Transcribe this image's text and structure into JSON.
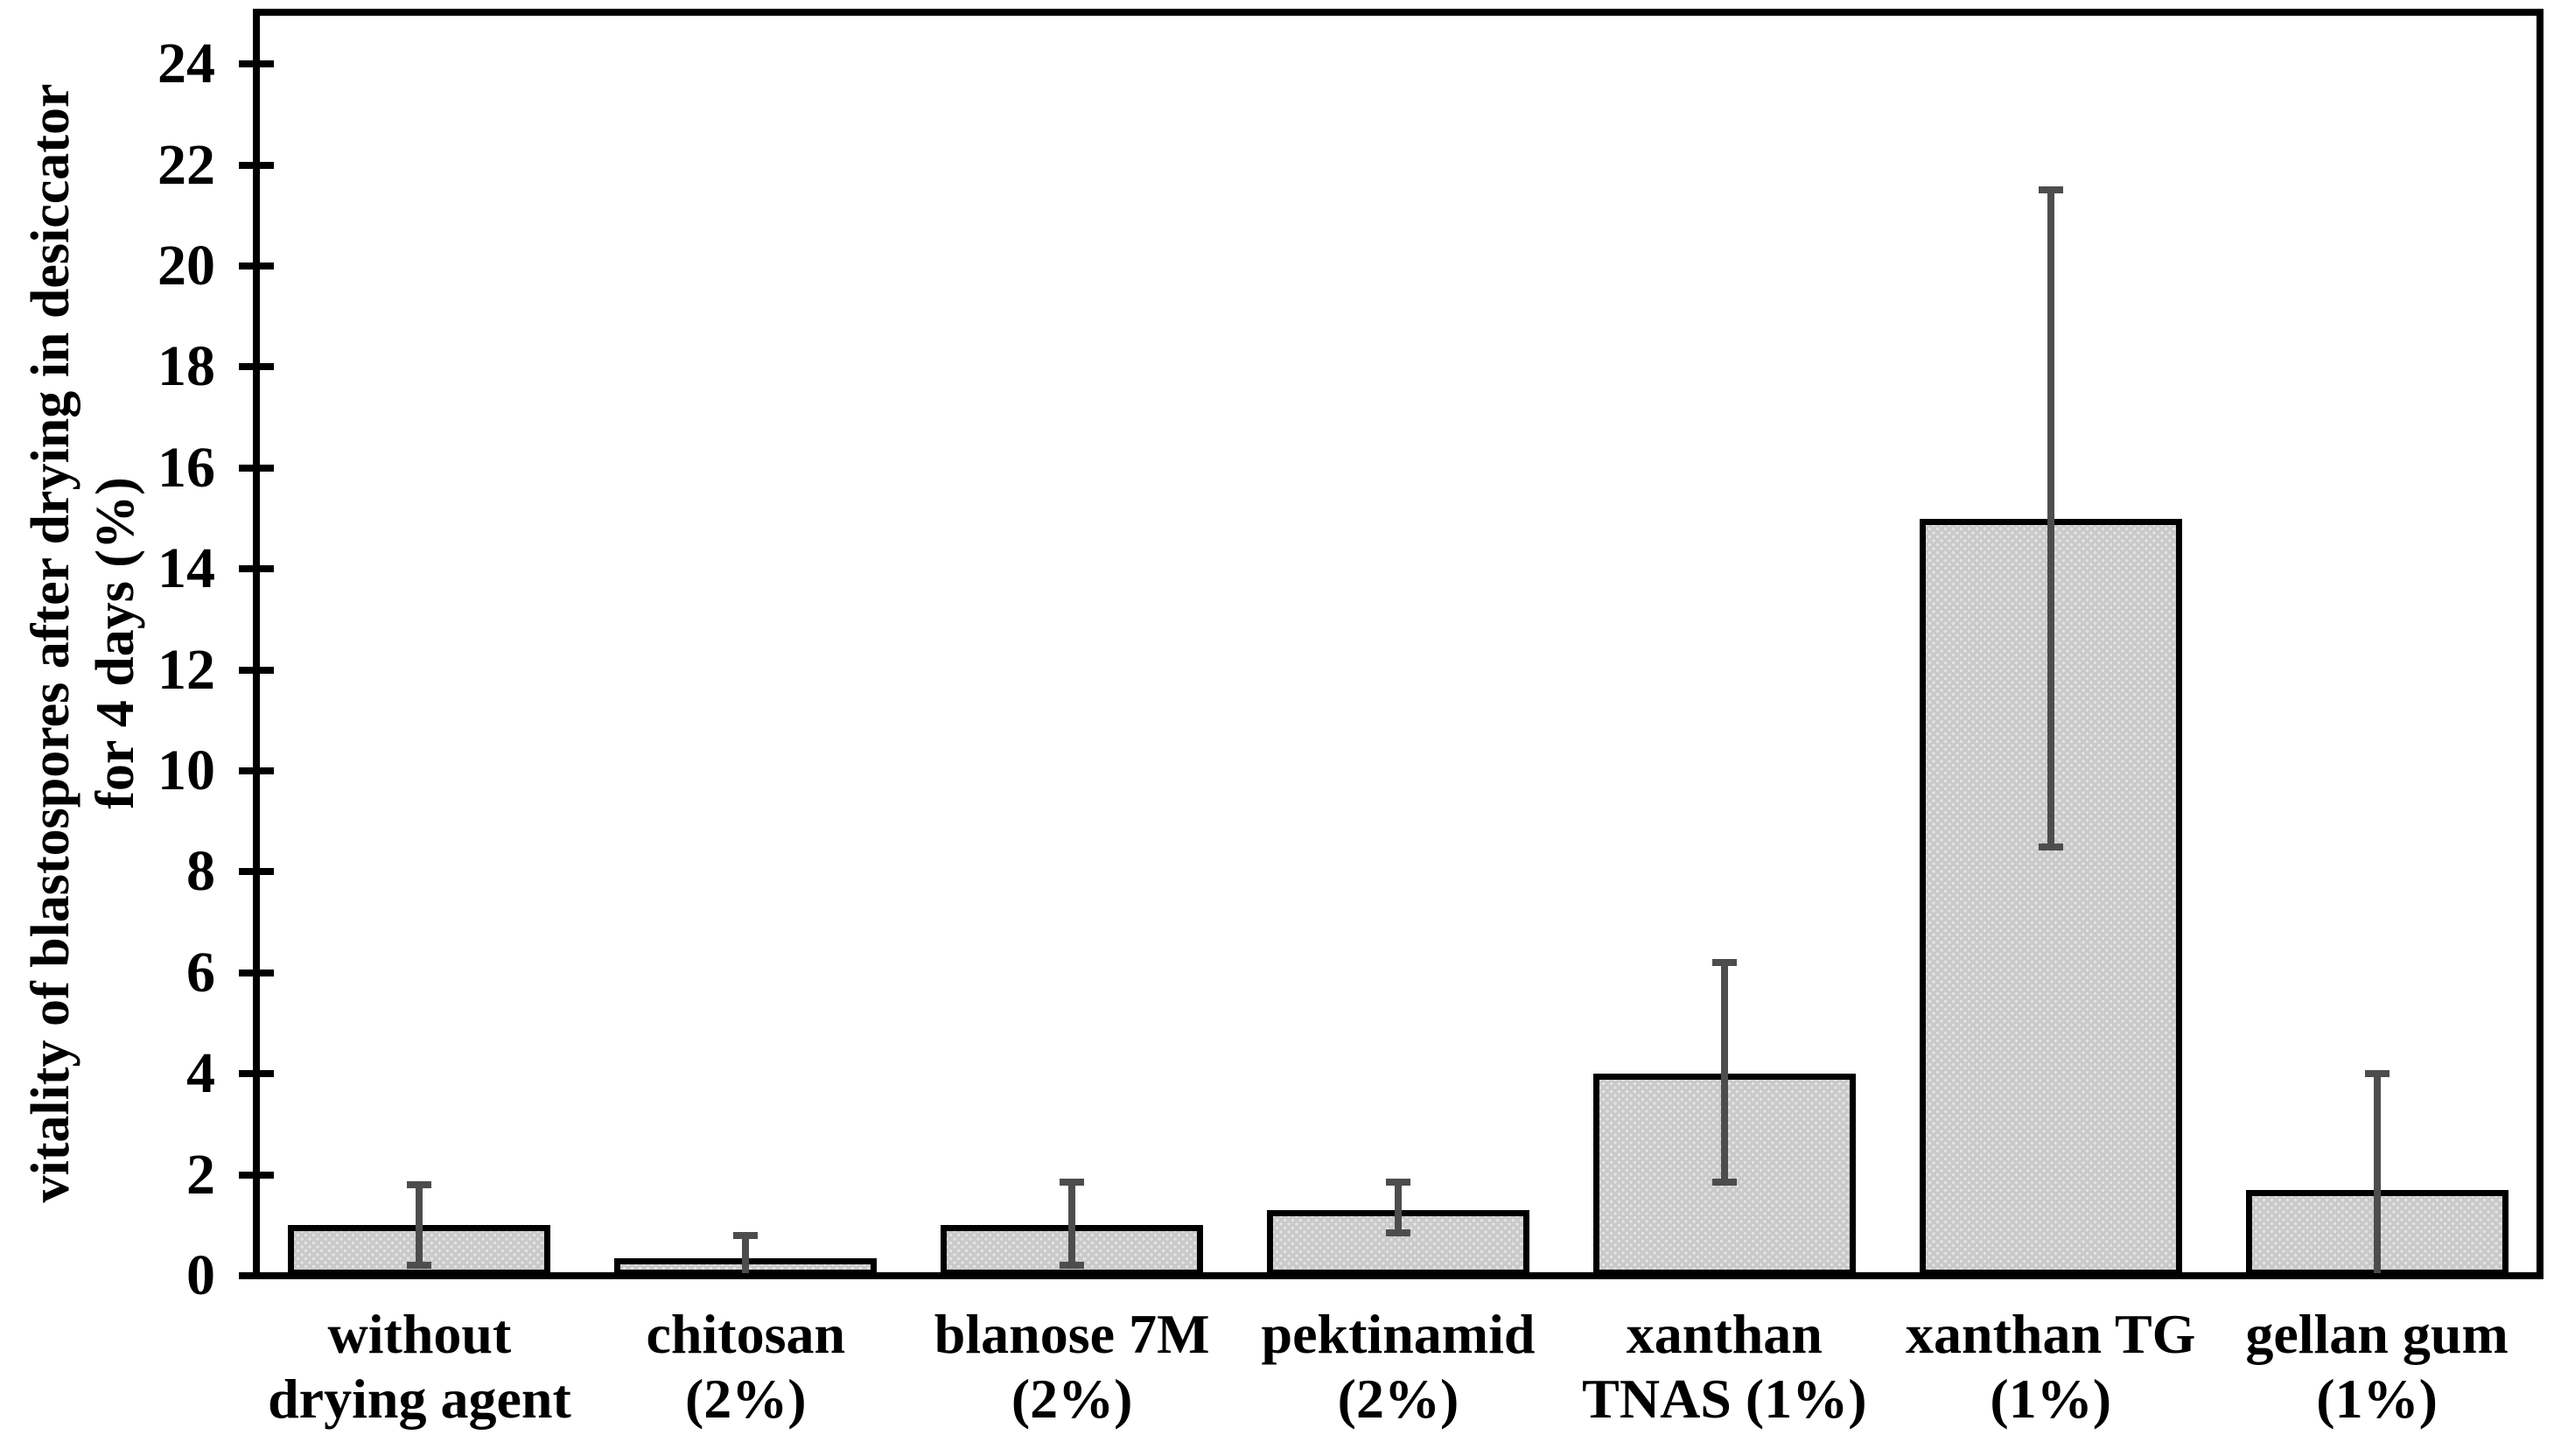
{
  "chart_data": {
    "type": "bar",
    "title": "",
    "xlabel": "",
    "ylabel": "vitality of blastospores after drying in desiccator for 4 days (%)",
    "ylabel_lines": [
      "vitality of blastospores after drying in desiccator",
      "for 4 days (%)"
    ],
    "ylim": [
      0,
      25.1
    ],
    "yticks": [
      0,
      2,
      4,
      6,
      8,
      10,
      12,
      14,
      16,
      18,
      20,
      22,
      24
    ],
    "grid": false,
    "legend": false,
    "bar_texture": "light dotted dither",
    "categories": [
      "without drying agent",
      "chitosan (2%)",
      "blanose 7M (2%)",
      "pektinamid (2%)",
      "xanthan TNAS (1%)",
      "xanthan TG (1%)",
      "gellan gum (1%)"
    ],
    "category_label_lines": [
      [
        "without",
        "drying agent"
      ],
      [
        "chitosan",
        "(2%)"
      ],
      [
        "blanose 7M",
        "(2%)"
      ],
      [
        "pektinamid",
        "(2%)"
      ],
      [
        "xanthan",
        "TNAS (1%)"
      ],
      [
        "xanthan TG",
        "(1%)"
      ],
      [
        "gellan gum",
        "(1%)"
      ]
    ],
    "series": [
      {
        "name": "vitality of blastospores",
        "values": [
          1.0,
          0.35,
          1.0,
          1.3,
          4.0,
          15.0,
          1.7
        ],
        "error_low": [
          0.2,
          0.0,
          0.2,
          0.85,
          1.85,
          8.5,
          0.0
        ],
        "error_high": [
          1.8,
          0.8,
          1.85,
          1.85,
          6.2,
          21.5,
          4.0
        ],
        "error_low_cap_visible": [
          true,
          false,
          true,
          true,
          true,
          true,
          false
        ]
      }
    ],
    "colors": {
      "bar_fill": "#c9c9c9",
      "bar_dot": "#e3e3e3",
      "bar_border": "#000000",
      "error_bar": "#4d4d4d",
      "axis": "#000000",
      "background": "#ffffff",
      "text": "#000000"
    }
  }
}
